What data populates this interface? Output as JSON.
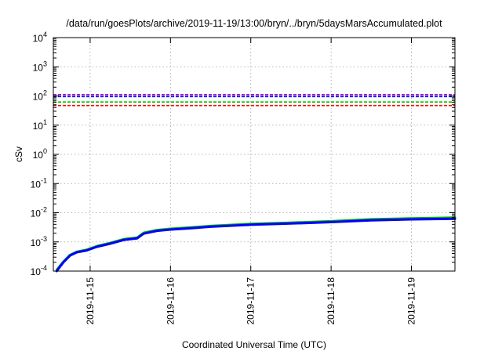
{
  "chart_data": {
    "type": "line",
    "title": "/data/run/goesPlots/archive/2019-11-19/13:00/bryn/../bryn/5daysMarsAccumulated.plot",
    "xlabel": "Coordinated Universal Time (UTC)",
    "ylabel": "cSv",
    "y_scale": "log",
    "xlim": [
      "2019-11-14T13:00",
      "2019-11-19T13:00"
    ],
    "ylim": [
      0.0001,
      10000
    ],
    "grid": true,
    "x_ticks": [
      "2019-11-15",
      "2019-11-16",
      "2019-11-17",
      "2019-11-18",
      "2019-11-19"
    ],
    "y_ticks": [
      {
        "value": 0.0001,
        "base": "10",
        "exp": "-4"
      },
      {
        "value": 0.001,
        "base": "10",
        "exp": "-3"
      },
      {
        "value": 0.01,
        "base": "10",
        "exp": "-2"
      },
      {
        "value": 0.1,
        "base": "10",
        "exp": "-1"
      },
      {
        "value": 1,
        "base": "10",
        "exp": "0"
      },
      {
        "value": 10,
        "base": "10",
        "exp": "1"
      },
      {
        "value": 100,
        "base": "10",
        "exp": "2"
      },
      {
        "value": 1000,
        "base": "10",
        "exp": "3"
      },
      {
        "value": 10000,
        "base": "10",
        "exp": "4"
      }
    ],
    "reference_lines": [
      {
        "value": 110,
        "color": "#8800cc"
      },
      {
        "value": 95,
        "color": "#0000ff"
      },
      {
        "value": 62,
        "color": "#00c000"
      },
      {
        "value": 47,
        "color": "#ff0000"
      }
    ],
    "series": [
      {
        "color": "#00b000",
        "x": [
          "2019-11-14T14:00",
          "2019-11-14T16:00",
          "2019-11-14T18:00",
          "2019-11-14T20:00",
          "2019-11-14T23:00",
          "2019-11-15T02:00",
          "2019-11-15T06:00",
          "2019-11-15T10:00",
          "2019-11-15T14:00",
          "2019-11-15T16:00",
          "2019-11-15T20:00",
          "2019-11-16T00:00",
          "2019-11-16T06:00",
          "2019-11-16T12:00",
          "2019-11-17T00:00",
          "2019-11-17T12:00",
          "2019-11-18T00:00",
          "2019-11-18T12:00",
          "2019-11-19T00:00",
          "2019-11-19T13:00"
        ],
        "y": [
          0.00011,
          0.00021,
          0.00036,
          0.00046,
          0.00054,
          0.00072,
          0.00092,
          0.00124,
          0.0014,
          0.00205,
          0.00255,
          0.00282,
          0.00312,
          0.00352,
          0.00412,
          0.00455,
          0.0051,
          0.00595,
          0.0064,
          0.0068
        ]
      },
      {
        "color": "#0000ff",
        "x": [
          "2019-11-14T14:00",
          "2019-11-14T16:00",
          "2019-11-14T18:00",
          "2019-11-14T20:00",
          "2019-11-14T23:00",
          "2019-11-15T02:00",
          "2019-11-15T06:00",
          "2019-11-15T10:00",
          "2019-11-15T14:00",
          "2019-11-15T16:00",
          "2019-11-15T20:00",
          "2019-11-16T00:00",
          "2019-11-16T06:00",
          "2019-11-16T12:00",
          "2019-11-17T00:00",
          "2019-11-17T12:00",
          "2019-11-18T00:00",
          "2019-11-18T12:00",
          "2019-11-19T00:00",
          "2019-11-19T13:00"
        ],
        "y": [
          0.0001,
          0.0002,
          0.00034,
          0.00044,
          0.00051,
          0.00068,
          0.00087,
          0.00116,
          0.00132,
          0.00192,
          0.0024,
          0.00265,
          0.00292,
          0.0033,
          0.00385,
          0.00425,
          0.00475,
          0.0055,
          0.0059,
          0.0062
        ]
      }
    ]
  }
}
